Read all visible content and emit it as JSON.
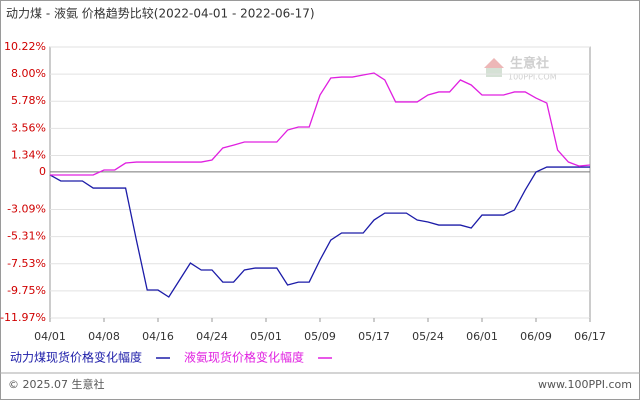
{
  "chart_data": {
    "type": "line",
    "title": "动力煤 - 液氨 价格趋势比较(2022-04-01 - 2022-06-17)",
    "x": [
      "04/01",
      "04/02",
      "04/04",
      "04/06",
      "04/07",
      "04/08",
      "04/10",
      "04/12",
      "04/13",
      "04/14",
      "04/16",
      "04/18",
      "04/19",
      "04/20",
      "04/22",
      "04/24",
      "04/25",
      "04/26",
      "04/27",
      "04/29",
      "05/01",
      "05/03",
      "05/05",
      "05/06",
      "05/07",
      "05/09",
      "05/10",
      "05/11",
      "05/12",
      "05/13",
      "05/17",
      "05/18",
      "05/19",
      "05/20",
      "05/23",
      "05/24",
      "05/25",
      "05/26",
      "05/27",
      "05/30",
      "06/01",
      "06/02",
      "06/05",
      "06/06",
      "06/07",
      "06/09",
      "06/10",
      "06/13",
      "06/14",
      "06/15",
      "06/17"
    ],
    "xticks": [
      "04/01",
      "04/08",
      "04/16",
      "04/24",
      "05/01",
      "05/09",
      "05/17",
      "05/24",
      "06/01",
      "06/09",
      "06/17"
    ],
    "ylim": [
      -11.97,
      10.22
    ],
    "yticks": [
      {
        "value": 10.22,
        "label": "10.22%"
      },
      {
        "value": 8.0,
        "label": "8.00%"
      },
      {
        "value": 5.78,
        "label": "5.78%"
      },
      {
        "value": 3.56,
        "label": "3.56%"
      },
      {
        "value": 1.34,
        "label": "1.34%"
      },
      0,
      {
        "value": -3.09,
        "label": "-3.09%"
      },
      {
        "value": -5.31,
        "label": "-5.31%"
      },
      {
        "value": -7.53,
        "label": "-7.53%"
      },
      {
        "value": -9.75,
        "label": "-9.75%"
      },
      {
        "value": -11.97,
        "label": "-11.97%"
      }
    ],
    "grid": true,
    "legend": "bottom-left",
    "series": [
      {
        "name": "动力煤现货价格变化幅度",
        "color": "#1c1ca8",
        "values": [
          -0.26,
          -0.75,
          -0.75,
          -0.75,
          -1.33,
          -1.33,
          -1.33,
          -1.33,
          -5.59,
          -9.68,
          -9.68,
          -10.25,
          -8.86,
          -7.47,
          -8.04,
          -8.04,
          -9.03,
          -9.03,
          -8.04,
          -7.88,
          -7.88,
          -7.88,
          -9.27,
          -9.03,
          -9.03,
          -7.22,
          -5.59,
          -5.01,
          -5.01,
          -5.01,
          -3.95,
          -3.38,
          -3.38,
          -3.38,
          -3.95,
          -4.11,
          -4.36,
          -4.36,
          -4.36,
          -4.6,
          -3.54,
          -3.54,
          -3.54,
          -3.13,
          -1.49,
          -0.02,
          0.39,
          0.39,
          0.39,
          0.39,
          0.39
        ]
      },
      {
        "name": "液氨现货价格变化幅度",
        "color": "#e020e0",
        "values": [
          -0.26,
          -0.26,
          -0.26,
          -0.26,
          -0.26,
          0.15,
          0.15,
          0.72,
          0.8,
          0.8,
          0.8,
          0.8,
          0.8,
          0.8,
          0.8,
          0.97,
          1.95,
          2.19,
          2.44,
          2.44,
          2.44,
          2.44,
          3.42,
          3.67,
          3.67,
          6.29,
          7.68,
          7.76,
          7.76,
          7.93,
          8.09,
          7.52,
          5.72,
          5.72,
          5.72,
          6.29,
          6.54,
          6.54,
          7.52,
          7.11,
          6.29,
          6.29,
          6.29,
          6.54,
          6.54,
          6.04,
          5.63,
          1.78,
          0.8,
          0.47,
          0.56
        ]
      }
    ]
  },
  "watermark": {
    "name": "生意社",
    "site": "100PPI.COM"
  },
  "footer": {
    "copyright": "© 2025.07 生意社",
    "site": "www.100PPI.com"
  }
}
